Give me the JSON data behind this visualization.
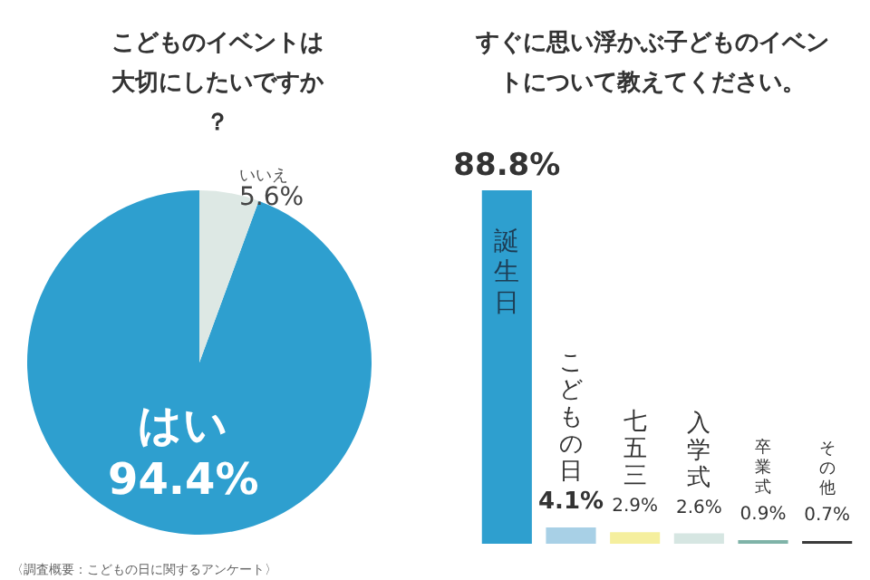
{
  "chart_data": [
    {
      "type": "pie",
      "title": "こどものイベントは大切にしたいですか？",
      "categories": [
        "はい",
        "いいえ"
      ],
      "values": [
        94.4,
        5.6
      ],
      "colors": [
        "#2e9fcf",
        "#dde8e4"
      ],
      "value_labels": [
        "94.4%",
        "5.6%"
      ],
      "annotations": [
        "〈調査概要：こどもの日に関するアンケート〉"
      ]
    },
    {
      "type": "bar",
      "title": "すぐに思い浮かぶ子どものイベントについて教えてください。",
      "categories": [
        "誕生日",
        "こどもの日",
        "七五三",
        "入学式",
        "卒業式",
        "その他"
      ],
      "values": [
        88.8,
        4.1,
        2.9,
        2.6,
        0.9,
        0.7
      ],
      "colors": [
        "#2e9fcf",
        "#a8d0e6",
        "#f5ef9e",
        "#d6e6e2",
        "#7fb3a8",
        "#3a3a3a"
      ],
      "value_labels": [
        "88.8%",
        "4.1%",
        "2.9%",
        "2.6%",
        "0.9%",
        "0.7%"
      ]
    }
  ]
}
